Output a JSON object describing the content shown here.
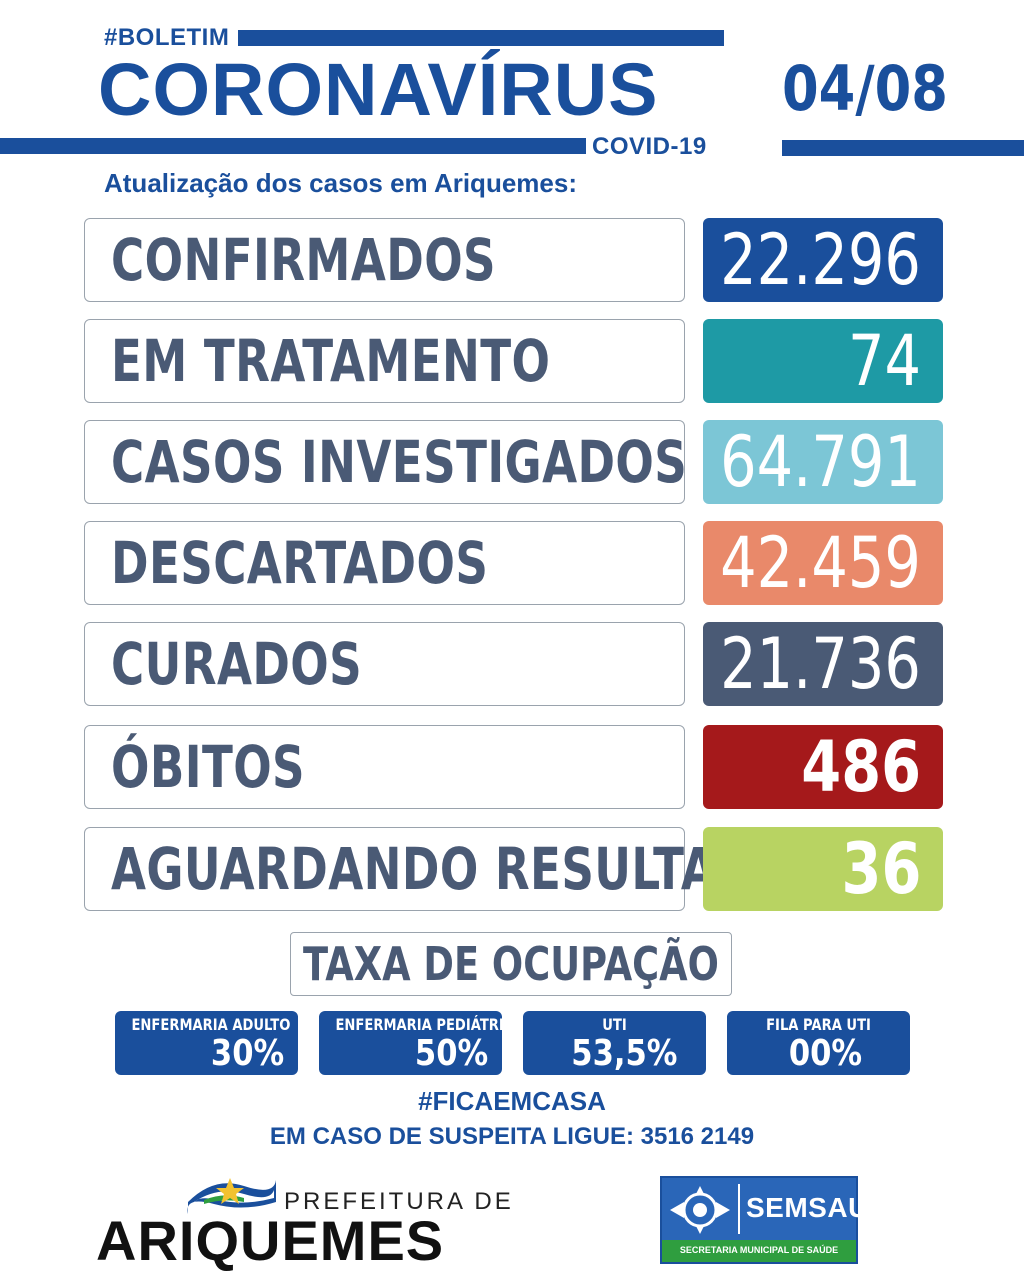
{
  "header": {
    "tag": "#BOLETIM",
    "title": "CORONAVÍRUS",
    "covid": "COVID-19",
    "date": "04/08",
    "subtitle": "Atualização dos casos em Ariquemes:"
  },
  "rows": [
    {
      "label": "CONFIRMADOS",
      "value": "22.296",
      "color": "#1a4f9c"
    },
    {
      "label": "EM TRATAMENTO",
      "value": "74",
      "color": "#1e9aa5"
    },
    {
      "label": "CASOS INVESTIGADOS",
      "value": "64.791",
      "color": "#7cc6d6"
    },
    {
      "label": "DESCARTADOS",
      "value": "42.459",
      "color": "#e9896a"
    },
    {
      "label": "CURADOS",
      "value": "21.736",
      "color": "#4a5a75"
    },
    {
      "label": "ÓBITOS",
      "value": "486",
      "color": "#a5191b"
    },
    {
      "label": "AGUARDANDO RESULTADO",
      "value": "36",
      "color": "#b8d362"
    }
  ],
  "occupancy": {
    "title": "TAXA DE OCUPAÇÃO",
    "items": [
      {
        "label": "ENFERMARIA ADULTO",
        "value": "30%"
      },
      {
        "label": "ENFERMARIA PEDIÁTRICA",
        "value": "50%"
      },
      {
        "label": "UTI",
        "value": "53,5%"
      },
      {
        "label": "FILA PARA UTI",
        "value": "00%"
      }
    ]
  },
  "footer": {
    "hashtag": "#FICAEMCASA",
    "phone_line": "EM CASO DE SUSPEITA LIGUE: 3516 2149"
  },
  "logos": {
    "prefeitura_small": "PREFEITURA DE",
    "prefeitura_big": "ARIQUEMES",
    "semsau_name": "SEMSAU",
    "semsau_sub": "SECRETARIA MUNICIPAL DE SAÚDE"
  }
}
